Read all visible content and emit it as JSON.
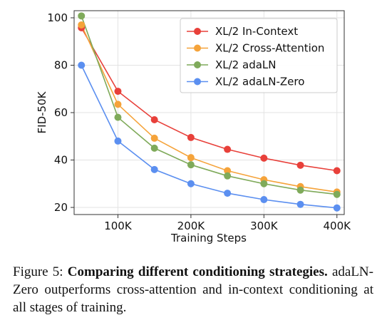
{
  "chart_data": {
    "type": "line",
    "xlabel": "Training Steps",
    "ylabel": "FID-50K",
    "x": [
      50000,
      100000,
      150000,
      200000,
      250000,
      300000,
      350000,
      400000
    ],
    "xlim": [
      40000,
      410000
    ],
    "ylim": [
      17,
      103
    ],
    "xticks": [
      100000,
      200000,
      300000,
      400000
    ],
    "xtick_labels": [
      "100K",
      "200K",
      "300K",
      "400K"
    ],
    "yticks": [
      20,
      40,
      60,
      80,
      100
    ],
    "ytick_labels": [
      "20",
      "40",
      "60",
      "80",
      "100"
    ],
    "grid": true,
    "legend_position": "top-right",
    "series": [
      {
        "name": "XL/2 In-Context",
        "color": "#e8403a",
        "values": [
          95.8,
          69,
          57,
          49.5,
          44.5,
          40.8,
          37.8,
          35.5
        ]
      },
      {
        "name": "XL/2 Cross-Attention",
        "color": "#f5a33a",
        "values": [
          97,
          63.5,
          49.2,
          41,
          35.5,
          31.7,
          28.8,
          26.5
        ]
      },
      {
        "name": "XL/2 adaLN",
        "color": "#7faa5a",
        "values": [
          100.8,
          58,
          45,
          38,
          33.3,
          30,
          27.3,
          25.5
        ]
      },
      {
        "name": "XL/2 adaLN-Zero",
        "color": "#5b8ff0",
        "values": [
          80,
          48,
          36,
          30,
          26,
          23.3,
          21.3,
          19.8
        ]
      }
    ]
  },
  "caption": {
    "prefix": "Figure 5: ",
    "title": "Comparing different conditioning strategies.",
    "body": " adaLN-Zero outperforms cross-attention and in-context conditioning at all stages of training."
  }
}
